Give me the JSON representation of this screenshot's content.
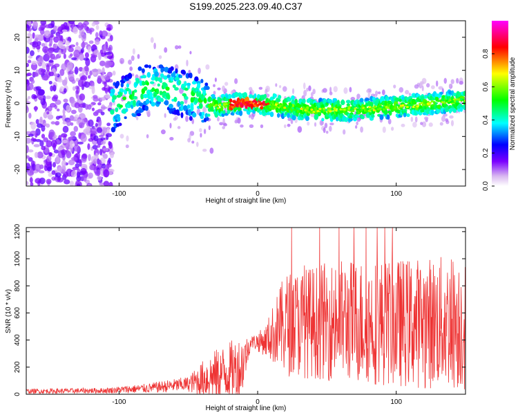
{
  "title": "S199.2025.223.09.40.C37",
  "chart_data": [
    {
      "type": "heatmap",
      "name": "spectrogram",
      "xlabel": "Height of straight line (km)",
      "ylabel": "Frequency (Hz)",
      "xlim": [
        -167,
        150
      ],
      "ylim": [
        -25,
        25
      ],
      "xticks": [
        -100,
        0,
        100
      ],
      "yticks": [
        -20,
        -10,
        0,
        10,
        20
      ],
      "colorbar": {
        "label": "Normalized spectral amplitude",
        "range": [
          0,
          1
        ],
        "ticks": [
          0.0,
          0.2,
          0.4,
          0.6,
          0.8
        ],
        "colormap": [
          "#e8ccf4",
          "#7a00ff",
          "#0000ff",
          "#00ffff",
          "#00ff00",
          "#ffff00",
          "#ff0000",
          "#ff00ff"
        ]
      },
      "ridge": {
        "description_points": [
          {
            "x": -100,
            "f": 0
          },
          {
            "x": -80,
            "f": 5
          },
          {
            "x": -60,
            "f": 4
          },
          {
            "x": -40,
            "f": 1
          },
          {
            "x": -30,
            "f": -1
          },
          {
            "x": -15,
            "f": 0
          },
          {
            "x": 0,
            "f": 0
          },
          {
            "x": 40,
            "f": -2
          },
          {
            "x": 70,
            "f": -2
          },
          {
            "x": 100,
            "f": -1
          },
          {
            "x": 150,
            "f": 1
          }
        ]
      }
    },
    {
      "type": "line",
      "name": "snr",
      "color": "#ee3333",
      "xlabel": "Height of straight line (km)",
      "ylabel": "SNR (10 * v/v)",
      "xlim": [
        -167,
        150
      ],
      "ylim": [
        0,
        1230
      ],
      "xticks": [
        -100,
        0,
        100
      ],
      "yticks": [
        0,
        200,
        400,
        600,
        800,
        1000,
        1200
      ],
      "envelope": [
        {
          "x": -167,
          "base": 20,
          "amp": 25
        },
        {
          "x": -110,
          "base": 25,
          "amp": 30
        },
        {
          "x": -80,
          "base": 40,
          "amp": 50
        },
        {
          "x": -50,
          "base": 70,
          "amp": 80
        },
        {
          "x": -35,
          "base": 110,
          "amp": 250
        },
        {
          "x": -12,
          "base": 170,
          "amp": 350
        },
        {
          "x": -5,
          "base": 380,
          "amp": 60
        },
        {
          "x": 5,
          "base": 380,
          "amp": 150
        },
        {
          "x": 20,
          "base": 480,
          "amp": 550
        },
        {
          "x": 60,
          "base": 500,
          "amp": 650
        },
        {
          "x": 100,
          "base": 480,
          "amp": 680
        },
        {
          "x": 150,
          "base": 480,
          "amp": 720
        }
      ]
    }
  ]
}
